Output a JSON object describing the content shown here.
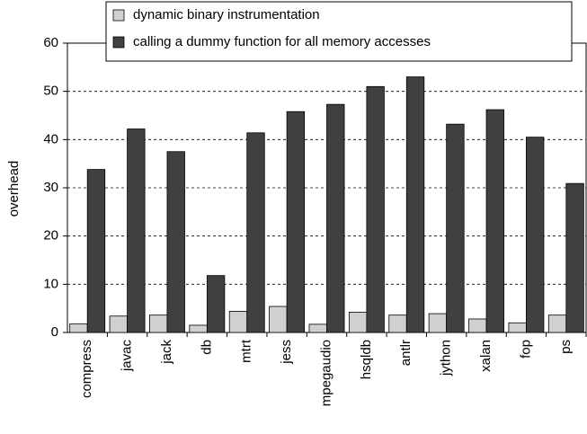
{
  "chart_data": {
    "type": "bar",
    "y_label": "overhead",
    "categories": [
      "compress",
      "javac",
      "jack",
      "db",
      "mtrt",
      "jess",
      "mpegaudio",
      "hsqldb",
      "antlr",
      "jython",
      "xalan",
      "fop",
      "ps"
    ],
    "series": [
      {
        "name": "dynamic binary instrumentation",
        "color": "#d0d0d0",
        "values": [
          1.8,
          3.4,
          3.6,
          1.5,
          4.4,
          5.4,
          1.7,
          4.2,
          3.6,
          3.9,
          2.8,
          2.0,
          3.6
        ]
      },
      {
        "name": "calling a dummy function for all memory accesses",
        "color": "#404040",
        "values": [
          33.8,
          42.2,
          37.5,
          11.8,
          41.4,
          45.8,
          47.3,
          51.0,
          53.0,
          43.2,
          46.2,
          40.5,
          30.9
        ]
      }
    ],
    "ylim": [
      0,
      60
    ],
    "yticks": [
      0,
      10,
      20,
      30,
      40,
      50,
      60
    ],
    "grid": true
  }
}
